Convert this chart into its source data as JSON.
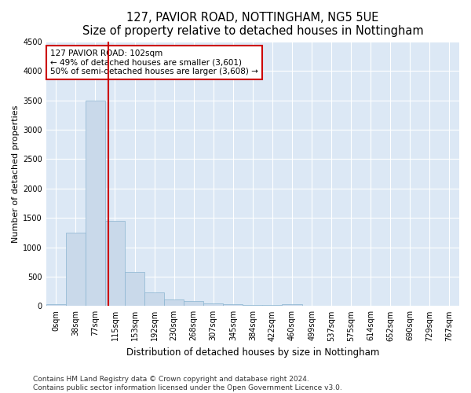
{
  "title1": "127, PAVIOR ROAD, NOTTINGHAM, NG5 5UE",
  "title2": "Size of property relative to detached houses in Nottingham",
  "xlabel": "Distribution of detached houses by size in Nottingham",
  "ylabel": "Number of detached properties",
  "bar_labels": [
    "0sqm",
    "38sqm",
    "77sqm",
    "115sqm",
    "153sqm",
    "192sqm",
    "230sqm",
    "268sqm",
    "307sqm",
    "345sqm",
    "384sqm",
    "422sqm",
    "460sqm",
    "499sqm",
    "537sqm",
    "575sqm",
    "614sqm",
    "652sqm",
    "690sqm",
    "729sqm",
    "767sqm"
  ],
  "bar_values": [
    25,
    1250,
    3500,
    1450,
    580,
    230,
    110,
    80,
    50,
    30,
    20,
    20,
    30,
    5,
    0,
    0,
    0,
    0,
    0,
    0,
    0
  ],
  "bar_color": "#c9d9ea",
  "bar_edge_color": "#8ab4d0",
  "vline_color": "#cc0000",
  "annotation_line1": "127 PAVIOR ROAD: 102sqm",
  "annotation_line2": "← 49% of detached houses are smaller (3,601)",
  "annotation_line3": "50% of semi-detached houses are larger (3,608) →",
  "annotation_box_color": "#ffffff",
  "annotation_box_edge": "#cc0000",
  "ylim": [
    0,
    4500
  ],
  "yticks": [
    0,
    500,
    1000,
    1500,
    2000,
    2500,
    3000,
    3500,
    4000,
    4500
  ],
  "plot_bg_color": "#dce8f5",
  "fig_bg_color": "#ffffff",
  "footer1": "Contains HM Land Registry data © Crown copyright and database right 2024.",
  "footer2": "Contains public sector information licensed under the Open Government Licence v3.0.",
  "title1_fontsize": 10.5,
  "title2_fontsize": 9.5,
  "xlabel_fontsize": 8.5,
  "ylabel_fontsize": 8,
  "tick_fontsize": 7,
  "footer_fontsize": 6.5,
  "annotation_fontsize": 7.5
}
